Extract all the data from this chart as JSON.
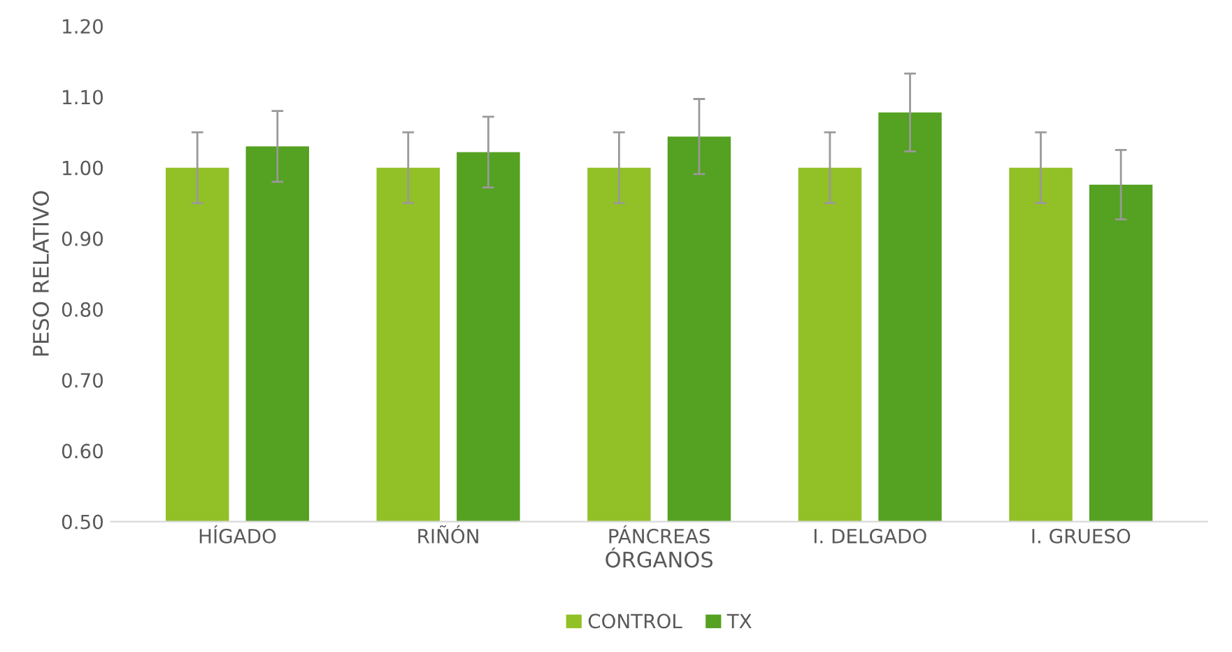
{
  "chart_data": {
    "type": "bar",
    "xlabel": "ÓRGANOS",
    "ylabel": "PESO RELATIVO",
    "categories": [
      "HÍGADO",
      "RIÑÓN",
      "PÁNCREAS",
      "I. DELGADO",
      "I. GRUESO"
    ],
    "series": [
      {
        "name": "CONTROL",
        "color": "#92c027",
        "values": [
          1.0,
          1.0,
          1.0,
          1.0,
          1.0
        ],
        "errors": [
          0.05,
          0.05,
          0.05,
          0.05,
          0.05
        ]
      },
      {
        "name": "TX",
        "color": "#55a122",
        "values": [
          1.03,
          1.022,
          1.044,
          1.078,
          0.976
        ],
        "errors": [
          0.05,
          0.05,
          0.053,
          0.055,
          0.049
        ]
      }
    ],
    "ylim": [
      0.5,
      1.2
    ],
    "yticks": [
      {
        "value": 0.5,
        "label": "0.50"
      },
      {
        "value": 0.6,
        "label": "0.60"
      },
      {
        "value": 0.7,
        "label": "0.70"
      },
      {
        "value": 0.8,
        "label": "0.80"
      },
      {
        "value": 0.9,
        "label": "0.90"
      },
      {
        "value": 1.0,
        "label": "1.00"
      },
      {
        "value": 1.1,
        "label": "1.10"
      },
      {
        "value": 1.2,
        "label": "1.20"
      }
    ],
    "grid": false,
    "legend": "bottom"
  }
}
